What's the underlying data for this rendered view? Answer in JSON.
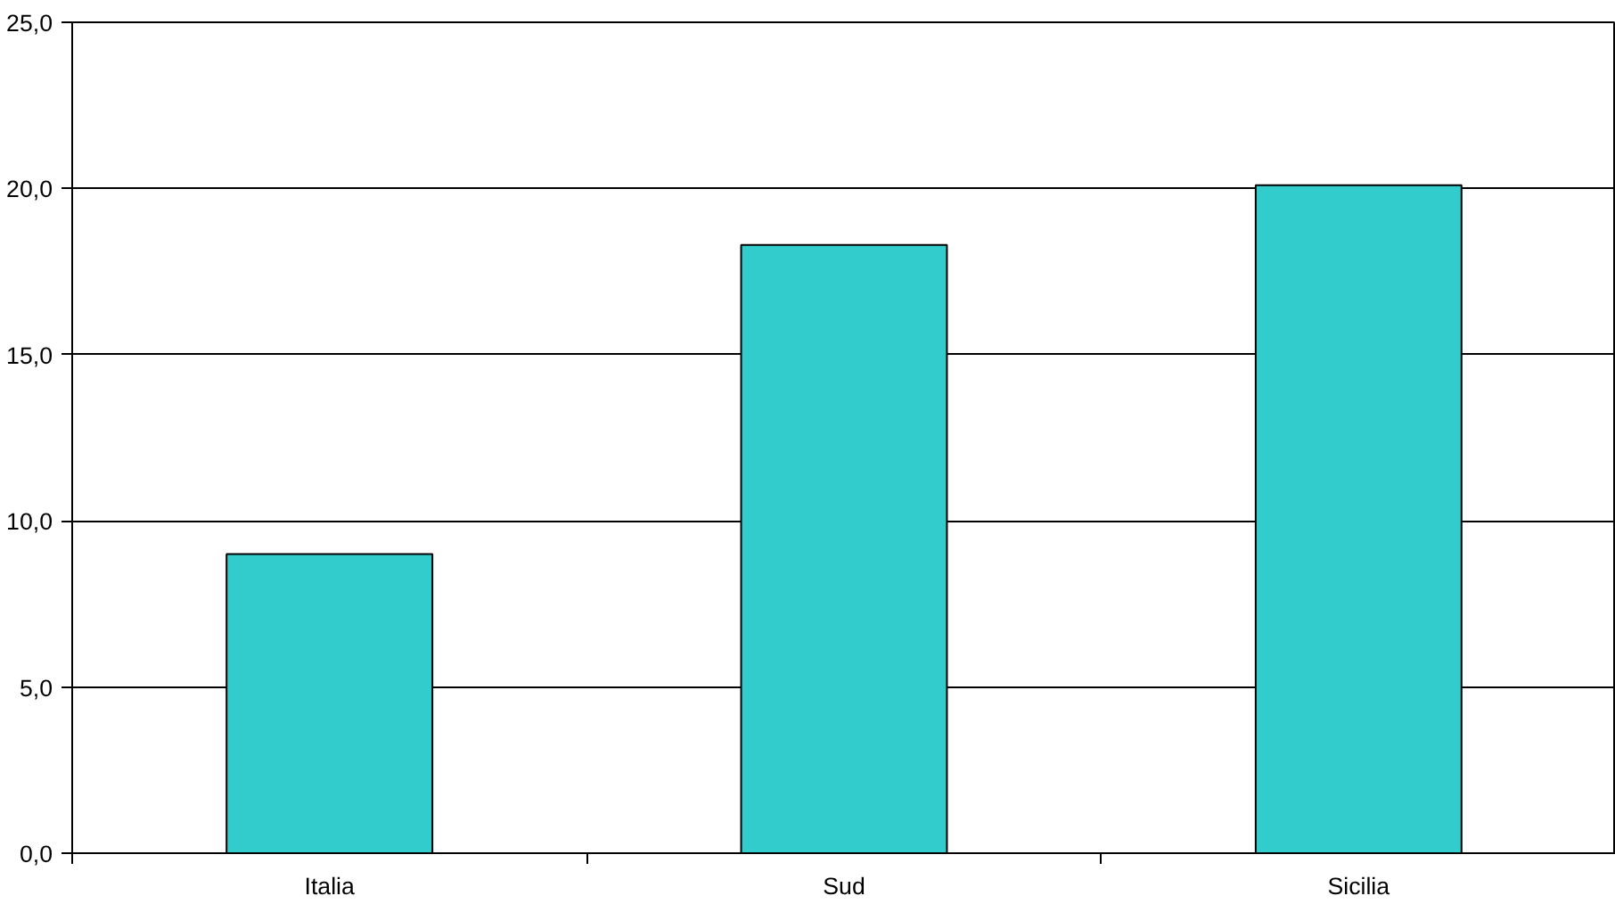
{
  "chart_data": {
    "type": "bar",
    "categories": [
      "Italia",
      "Sud",
      "Sicilia"
    ],
    "values": [
      9.0,
      18.3,
      20.1
    ],
    "color": "#33cccc",
    "ylim": [
      0,
      25
    ],
    "yticks": [
      {
        "value": 0,
        "label": "0,0"
      },
      {
        "value": 5,
        "label": "5,0"
      },
      {
        "value": 10,
        "label": "10,0"
      },
      {
        "value": 15,
        "label": "15,0"
      },
      {
        "value": 20,
        "label": "20,0"
      },
      {
        "value": 25,
        "label": "25,0"
      }
    ],
    "grid": "y"
  }
}
